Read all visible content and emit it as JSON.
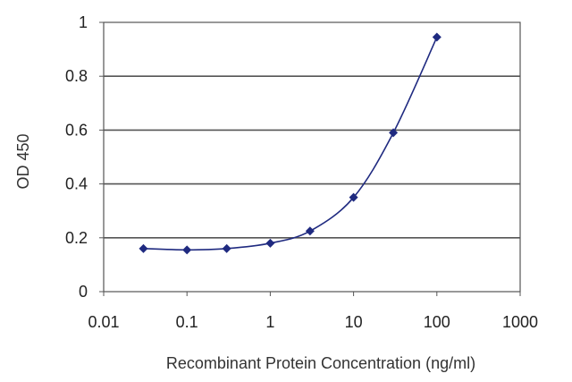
{
  "chart_data": {
    "type": "scatter",
    "title": "",
    "xlabel": "Recombinant Protein Concentration (ng/ml)",
    "ylabel": "OD 450",
    "x_scale": "log",
    "xlim": [
      0.01,
      1000
    ],
    "ylim": [
      0,
      1
    ],
    "x_ticks": [
      0.01,
      0.1,
      1,
      10,
      100,
      1000
    ],
    "x_tick_labels": [
      "0.01",
      "0.1",
      "1",
      "10",
      "100",
      "1000"
    ],
    "y_ticks": [
      0,
      0.2,
      0.4,
      0.6,
      0.8,
      1
    ],
    "y_tick_labels": [
      "0",
      "0.2",
      "0.4",
      "0.6",
      "0.8",
      "1"
    ],
    "grid": "horizontal",
    "legend": "none",
    "series": [
      {
        "x": [
          0.03,
          0.1,
          0.3,
          1,
          3,
          10,
          30,
          100
        ],
        "y": [
          0.16,
          0.155,
          0.16,
          0.18,
          0.225,
          0.35,
          0.59,
          0.945
        ],
        "marker": "diamond",
        "line": "smooth fitted curve"
      }
    ],
    "colors": {
      "series": "#1f2a80",
      "grid": "#555555",
      "frame": "#555555"
    }
  }
}
